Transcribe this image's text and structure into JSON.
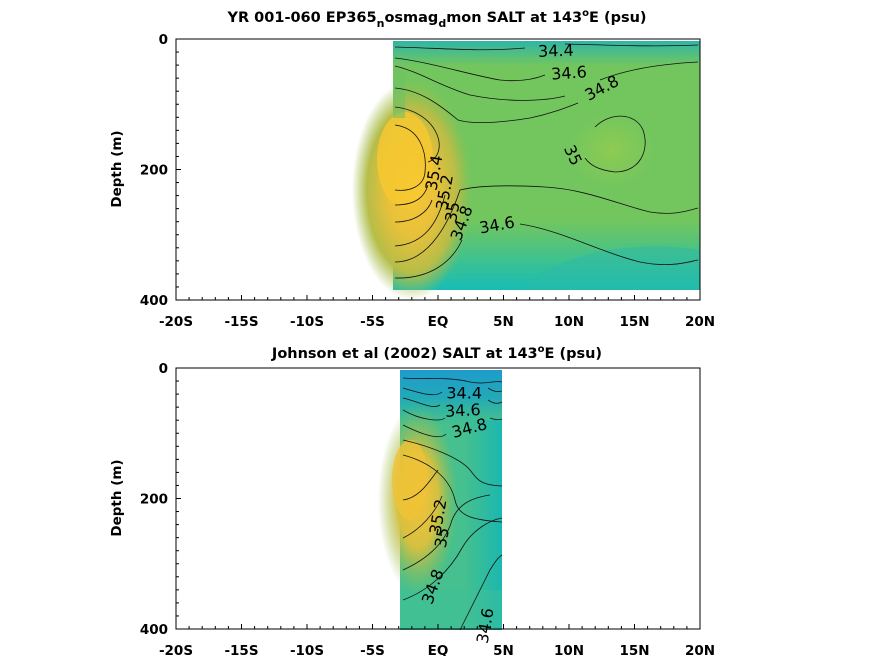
{
  "chart_data": [
    {
      "type": "heatmap",
      "title": {
        "pre": "YR 001-060 EP365",
        "sub1": "n",
        "mid": "osmag",
        "sub2": "d",
        "post": "mon SALT at 143",
        "sup": "o",
        "end": "E (psu)"
      },
      "ylabel": "Depth (m)",
      "x_ticks": [
        "-20S",
        "-15S",
        "-10S",
        "-5S",
        "EQ",
        "5N",
        "10N",
        "15N",
        "20N"
      ],
      "y_ticks": [
        "0",
        "200",
        "400"
      ],
      "xlim": [
        -20,
        20
      ],
      "ylim": [
        0,
        400
      ],
      "data_extent": {
        "x": [
          -3.3,
          20
        ],
        "y": [
          2,
          385
        ]
      },
      "contour_labels": [
        {
          "text": "34.4",
          "x": 9.0,
          "y": 18,
          "angle": -2
        },
        {
          "text": "34.6",
          "x": 10.0,
          "y": 52,
          "angle": -4
        },
        {
          "text": "34.8",
          "x": 12.5,
          "y": 75,
          "angle": -28
        },
        {
          "text": "35",
          "x": 10.3,
          "y": 178,
          "angle": 65
        },
        {
          "text": "35.4",
          "x": -0.3,
          "y": 205,
          "angle": -80
        },
        {
          "text": "35.2",
          "x": 0.5,
          "y": 235,
          "angle": -80
        },
        {
          "text": "35",
          "x": 1.1,
          "y": 265,
          "angle": -80
        },
        {
          "text": "34.8",
          "x": 1.8,
          "y": 282,
          "angle": -70
        },
        {
          "text": "34.6",
          "x": 4.5,
          "y": 285,
          "angle": -10
        }
      ]
    },
    {
      "type": "heatmap",
      "title": {
        "pre": "Johnson et al (2002) SALT at 143",
        "sup": "o",
        "end": "E (psu)"
      },
      "ylabel": "Depth (m)",
      "x_ticks": [
        "-20S",
        "-15S",
        "-10S",
        "-5S",
        "EQ",
        "5N",
        "10N",
        "15N",
        "20N"
      ],
      "y_ticks": [
        "0",
        "200",
        "400"
      ],
      "xlim": [
        -20,
        20
      ],
      "ylim": [
        0,
        400
      ],
      "data_extent": {
        "x": [
          -2.8,
          5
        ],
        "y": [
          5,
          400
        ]
      },
      "contour_labels": [
        {
          "text": "34.4",
          "x": 2.0,
          "y": 38,
          "angle": 0
        },
        {
          "text": "34.6",
          "x": 1.9,
          "y": 65,
          "angle": -3
        },
        {
          "text": "34.8",
          "x": 2.4,
          "y": 92,
          "angle": -15
        },
        {
          "text": "35.2",
          "x": 0.0,
          "y": 228,
          "angle": -80
        },
        {
          "text": "35",
          "x": 0.3,
          "y": 260,
          "angle": -80
        },
        {
          "text": "34.8",
          "x": -0.4,
          "y": 335,
          "angle": -70
        },
        {
          "text": "34.6",
          "x": 3.6,
          "y": 395,
          "angle": -80
        }
      ]
    }
  ]
}
